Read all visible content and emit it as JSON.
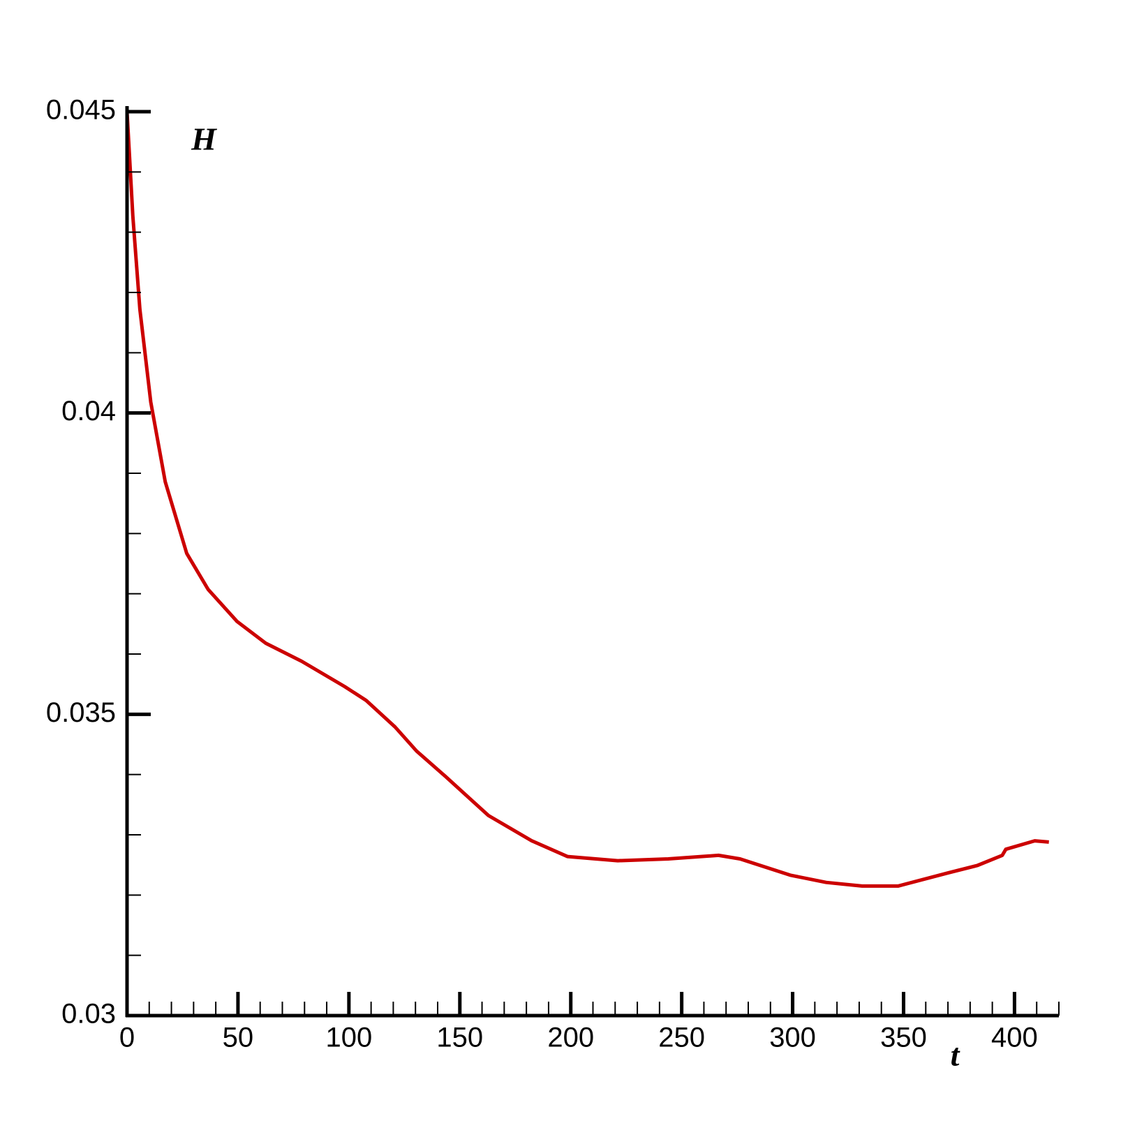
{
  "chart_data": {
    "type": "line",
    "ylabel": "H",
    "xlabel": "t",
    "x": [
      0,
      2.6,
      5.8,
      10.7,
      17.2,
      26.9,
      36.6,
      49.6,
      62.5,
      78.7,
      98.1,
      107.8,
      120.8,
      130.5,
      143.5,
      162.9,
      182.4,
      198.5,
      221.2,
      243.9,
      266.6,
      276.3,
      298.9,
      315.1,
      331.3,
      347.5,
      370.2,
      383.2,
      394.5,
      396.1,
      409.1,
      415.5
    ],
    "series": [
      {
        "color": "#cc0000",
        "values": [
          0.045,
          0.04327,
          0.04172,
          0.04018,
          0.03886,
          0.03767,
          0.03707,
          0.03654,
          0.03618,
          0.03588,
          0.03546,
          0.03523,
          0.03479,
          0.03439,
          0.03397,
          0.03332,
          0.0329,
          0.03264,
          0.03257,
          0.0326,
          0.03266,
          0.0326,
          0.03233,
          0.03221,
          0.03215,
          0.03215,
          0.03237,
          0.03249,
          0.03266,
          0.03276,
          0.0329,
          0.03288
        ]
      }
    ],
    "xlim": [
      0,
      420
    ],
    "ylim": [
      0.03,
      0.045
    ],
    "xticks": [
      0,
      50,
      100,
      150,
      200,
      250,
      300,
      350,
      400
    ],
    "yticks": [
      0.03,
      0.035,
      0.04,
      0.045
    ],
    "xminorticks": [
      10,
      20,
      30,
      40,
      60,
      70,
      80,
      90,
      110,
      120,
      130,
      140,
      160,
      170,
      180,
      190,
      210,
      220,
      230,
      240,
      260,
      270,
      280,
      290,
      310,
      320,
      330,
      340,
      360,
      370,
      380,
      390,
      410,
      420
    ],
    "yminorticks": [
      0.031,
      0.032,
      0.033,
      0.034,
      0.036,
      0.037,
      0.038,
      0.039,
      0.041,
      0.042,
      0.043,
      0.044
    ]
  }
}
